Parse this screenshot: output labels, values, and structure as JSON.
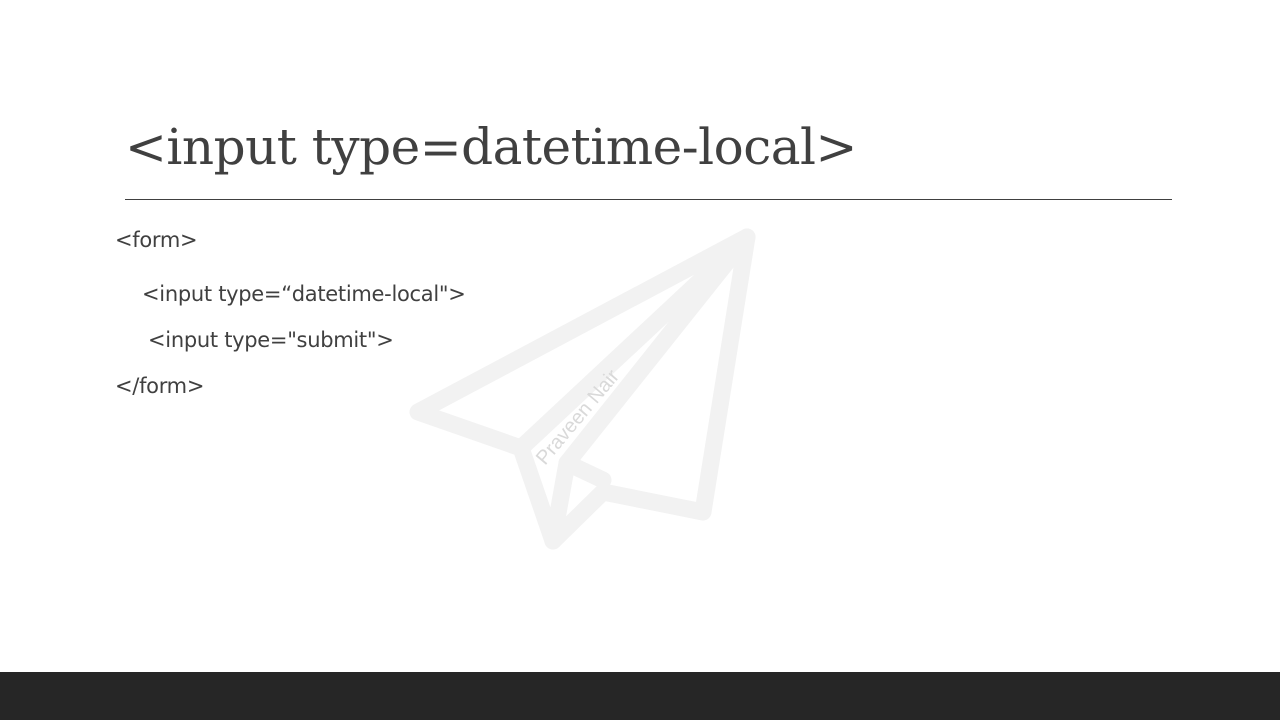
{
  "slide": {
    "title": "<input type=datetime-local>",
    "code_lines": [
      "<form>",
      "<input type=“datetime-local\">",
      "<input type=\"submit\">",
      "</form>"
    ],
    "watermark_text": "Praveen Nair",
    "watermark_icon": "paper-plane-icon"
  },
  "colors": {
    "text": "#404040",
    "rule": "#404040",
    "footer": "#262626",
    "watermark": "#f2f2f2",
    "watermark_text": "#d9d9d9"
  }
}
